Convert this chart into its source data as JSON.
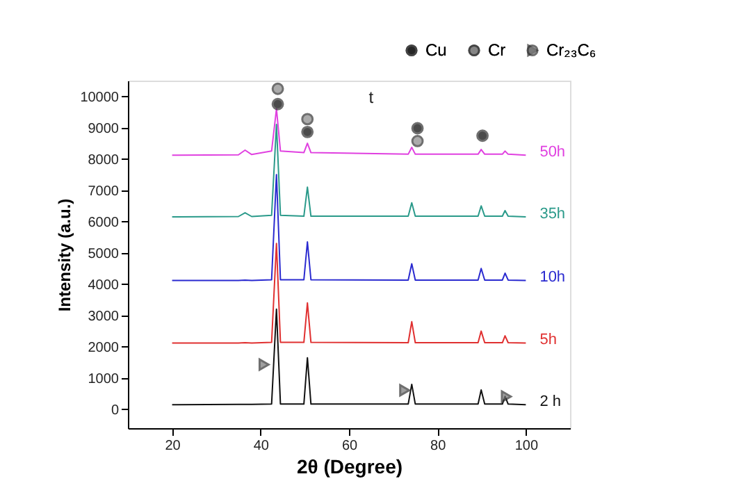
{
  "chart_data": {
    "type": "line",
    "xlabel": "2θ (Degree)",
    "ylabel": "Intensity (a.u.)",
    "xlim": [
      10,
      110
    ],
    "xticks": [
      20,
      40,
      60,
      80,
      100
    ],
    "ylim": [
      -600,
      10500
    ],
    "yticks": [
      0,
      1000,
      2000,
      3000,
      4000,
      5000,
      6000,
      7000,
      8000,
      9000,
      10000
    ],
    "grid": false,
    "legend": "top right",
    "line_style": "solid",
    "x": [
      20,
      35,
      36.5,
      38,
      42.5,
      43.6,
      44.5,
      49.8,
      50.6,
      51.4,
      73.4,
      74.2,
      75,
      89.2,
      89.9,
      90.7,
      94.7,
      95.3,
      96,
      100
    ],
    "series": [
      {
        "name": "2 h",
        "color": "#111111",
        "values": [
          150,
          160,
          160,
          160,
          170,
          3200,
          170,
          170,
          1650,
          170,
          170,
          800,
          170,
          170,
          620,
          170,
          170,
          420,
          170,
          150
        ]
      },
      {
        "name": "5h",
        "color": "#e03030",
        "values": [
          2120,
          2120,
          2130,
          2120,
          2140,
          5300,
          2140,
          2140,
          3400,
          2140,
          2130,
          2800,
          2130,
          2130,
          2500,
          2130,
          2130,
          2350,
          2130,
          2120
        ]
      },
      {
        "name": "10h",
        "color": "#2a2ad0",
        "values": [
          4120,
          4120,
          4130,
          4120,
          4140,
          7500,
          4140,
          4140,
          5350,
          4140,
          4130,
          4650,
          4130,
          4130,
          4500,
          4130,
          4130,
          4350,
          4130,
          4120
        ]
      },
      {
        "name": "35h",
        "color": "#2a9a8a",
        "values": [
          6150,
          6160,
          6280,
          6160,
          6200,
          9100,
          6200,
          6170,
          7100,
          6170,
          6170,
          6600,
          6170,
          6170,
          6500,
          6170,
          6170,
          6350,
          6170,
          6150
        ]
      },
      {
        "name": "50h",
        "color": "#e040e0",
        "values": [
          8120,
          8130,
          8280,
          8140,
          8250,
          9600,
          8250,
          8200,
          8500,
          8200,
          8150,
          8370,
          8150,
          8150,
          8300,
          8150,
          8150,
          8250,
          8150,
          8120
        ]
      },
      {
        "type": "scatter",
        "name": "Cu",
        "color": "#000000",
        "marker": "circle",
        "x": [
          43.9,
          50.6,
          75.5,
          90.2
        ],
        "values": [
          9750,
          8860,
          8980,
          8740
        ]
      },
      {
        "type": "scatter",
        "name": "Cr",
        "color": "#888888",
        "marker": "circle",
        "x": [
          43.9,
          50.6,
          75.5
        ],
        "values": [
          10240,
          9270,
          8570
        ]
      },
      {
        "type": "scatter",
        "name": "Cr₂₃C₆",
        "color": "#777777",
        "marker": "triangle",
        "x": [
          40.8,
          72.6,
          95.6
        ],
        "values": [
          1430,
          610,
          410
        ]
      }
    ],
    "annotations": [
      "t"
    ]
  }
}
